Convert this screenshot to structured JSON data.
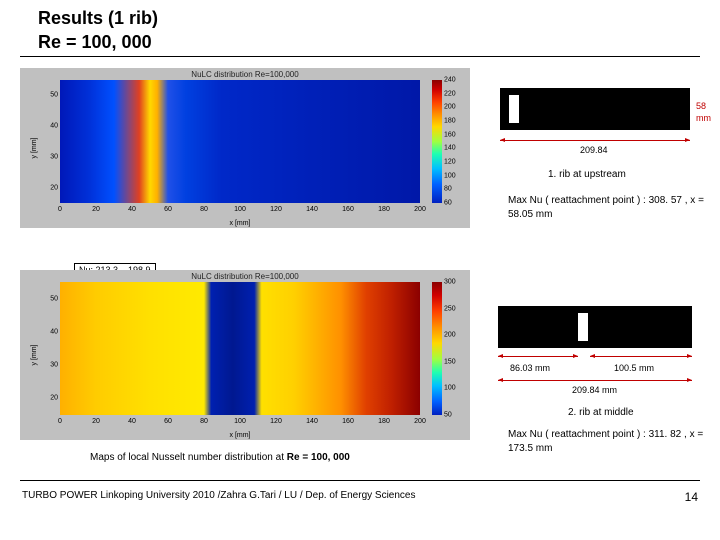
{
  "title": {
    "line1": "Results (1 rib)",
    "line2": "Re = 100, 000"
  },
  "plot1": {
    "title": "NuLC distribution Re=100,000",
    "xlabel": "x [mm]",
    "ylabel": "y [mm]",
    "x_ticks": [
      0,
      20,
      40,
      60,
      80,
      100,
      120,
      140,
      160,
      180,
      200
    ],
    "y_ticks": [
      20,
      30,
      40,
      50
    ],
    "xlim": [
      0,
      200
    ],
    "ylim": [
      15,
      55
    ],
    "cb_range": [
      60,
      240
    ],
    "cb_ticks": [
      240,
      220,
      200,
      180,
      160,
      140,
      120,
      100,
      80,
      60
    ],
    "gradient": "linear-gradient(90deg,#0018b8 0%,#0030d8 8%,#0050ff 15%,#e04020 22%,#ffd800 25%,#ffb000 27%,#2050e8 30%,#0040e0 35%,#0028c8 45%,#0020b8 70%,#0018a8 100%)",
    "cb_gradient": "linear-gradient(180deg,#8b0000 0%,#d00000 8%,#ff4000 18%,#ff9000 28%,#ffd800 38%,#a0ff40 50%,#20ffb0 60%,#00c0ff 72%,#0060ff 85%,#0020c0 100%)"
  },
  "plot2": {
    "title": "NuLC distribution Re=100,000",
    "xlabel": "x [mm]",
    "ylabel": "y [mm]",
    "x_ticks": [
      0,
      20,
      40,
      60,
      80,
      100,
      120,
      140,
      160,
      180,
      200
    ],
    "y_ticks": [
      20,
      30,
      40,
      50
    ],
    "xlim": [
      0,
      200
    ],
    "ylim": [
      15,
      55
    ],
    "cb_range": [
      50,
      300
    ],
    "cb_ticks": [
      300,
      250,
      200,
      150,
      100,
      50
    ],
    "gradient": "linear-gradient(90deg,#ffb000 0%,#ffcc00 10%,#ffe000 25%,#ffea00 40%,#0020b0 42%,#001890 48%,#0020b0 54%,#ffe000 56%,#ffd000 65%,#ff9000 78%,#e04000 85%,#c02000 92%,#8b0000 100%)",
    "cb_gradient": "linear-gradient(180deg,#8b0000 0%,#d00000 10%,#ff4000 22%,#ff9000 34%,#ffd800 46%,#a0ff40 58%,#20ffb0 68%,#00c0ff 78%,#0060ff 90%,#0020c0 100%)"
  },
  "nu_box": "Nu: 213.3 – 198.9",
  "diagram1": {
    "rib_left_pct": 4,
    "dim_label": "58 mm",
    "width_label": "209.84",
    "caption": "1. rib at upstream",
    "max_nu": "Max Nu ( reattachment point ) : 308. 57 , x = 58.05 mm"
  },
  "diagram2": {
    "rib_left_pct": 41,
    "left_label": "86.03 mm",
    "right_label": "100.5 mm",
    "width_label": "209.84 mm",
    "caption": "2. rib at middle",
    "max_nu": "Max Nu ( reattachment point ) : 311. 82 , x = 173.5 mm"
  },
  "caption": {
    "prefix": "Maps of  local Nusselt number distribution at ",
    "bold": "Re = 100, 000"
  },
  "footer": "TURBO POWER Linkoping University 2010 /Zahra G.Tari / LU / Dep. of Energy Sciences",
  "page": "14"
}
